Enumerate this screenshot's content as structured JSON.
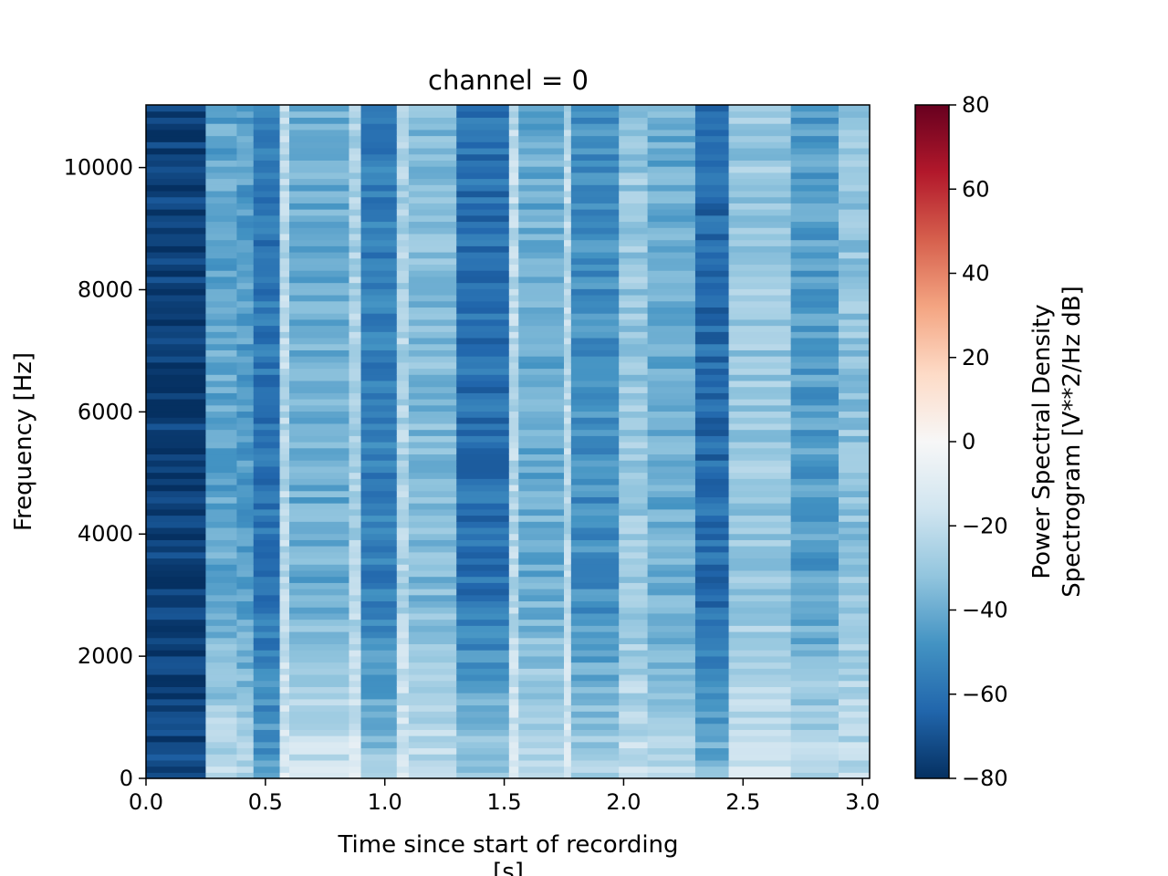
{
  "chart_data": {
    "type": "heatmap",
    "title": "channel = 0",
    "xlabel_line1": "Time since start of recording",
    "xlabel_line2": "[s]",
    "ylabel": "Frequency [Hz]",
    "xlim": [
      0.0,
      3.03
    ],
    "ylim": [
      0,
      11025
    ],
    "x_ticks": [
      0.0,
      0.5,
      1.0,
      1.5,
      2.0,
      2.5,
      3.0
    ],
    "x_tick_labels": [
      "0.0",
      "0.5",
      "1.0",
      "1.5",
      "2.0",
      "2.5",
      "3.0"
    ],
    "y_ticks": [
      0,
      2000,
      4000,
      6000,
      8000,
      10000
    ],
    "y_tick_labels": [
      "0",
      "2000",
      "4000",
      "6000",
      "8000",
      "10000"
    ],
    "colormap": "RdBu_r",
    "colorbar": {
      "label_line1": "Power Spectral Density",
      "label_line2": "Spectrogram [V**2/Hz dB]",
      "range": [
        -80,
        80
      ],
      "ticks": [
        -80,
        -60,
        -40,
        -20,
        0,
        20,
        40,
        60,
        80
      ],
      "tick_labels": [
        "−80",
        "−60",
        "−40",
        "−20",
        "0",
        "20",
        "40",
        "60",
        "80"
      ]
    },
    "time_segments_s": [
      {
        "t0": 0.0,
        "t1": 0.25,
        "db_high_freq": -76,
        "db_low_freq": -74
      },
      {
        "t0": 0.25,
        "t1": 0.38,
        "db_high_freq": -42,
        "db_low_freq": -20
      },
      {
        "t0": 0.38,
        "t1": 0.45,
        "db_high_freq": -45,
        "db_low_freq": -25
      },
      {
        "t0": 0.45,
        "t1": 0.56,
        "db_high_freq": -58,
        "db_low_freq": -45
      },
      {
        "t0": 0.56,
        "t1": 0.6,
        "db_high_freq": -22,
        "db_low_freq": -12
      },
      {
        "t0": 0.6,
        "t1": 0.85,
        "db_high_freq": -40,
        "db_low_freq": -15
      },
      {
        "t0": 0.85,
        "t1": 0.9,
        "db_high_freq": -25,
        "db_low_freq": -12
      },
      {
        "t0": 0.9,
        "t1": 1.05,
        "db_high_freq": -55,
        "db_low_freq": -28
      },
      {
        "t0": 1.05,
        "t1": 1.1,
        "db_high_freq": -25,
        "db_low_freq": -12
      },
      {
        "t0": 1.1,
        "t1": 1.3,
        "db_high_freq": -35,
        "db_low_freq": -20
      },
      {
        "t0": 1.3,
        "t1": 1.52,
        "db_high_freq": -60,
        "db_low_freq": -28
      },
      {
        "t0": 1.52,
        "t1": 1.56,
        "db_high_freq": -22,
        "db_low_freq": -12
      },
      {
        "t0": 1.56,
        "t1": 1.75,
        "db_high_freq": -40,
        "db_low_freq": -20
      },
      {
        "t0": 1.75,
        "t1": 1.78,
        "db_high_freq": -22,
        "db_low_freq": -12
      },
      {
        "t0": 1.78,
        "t1": 1.98,
        "db_high_freq": -50,
        "db_low_freq": -25
      },
      {
        "t0": 1.98,
        "t1": 2.1,
        "db_high_freq": -30,
        "db_low_freq": -18
      },
      {
        "t0": 2.1,
        "t1": 2.3,
        "db_high_freq": -40,
        "db_low_freq": -22
      },
      {
        "t0": 2.3,
        "t1": 2.44,
        "db_high_freq": -62,
        "db_low_freq": -35
      },
      {
        "t0": 2.44,
        "t1": 2.7,
        "db_high_freq": -30,
        "db_low_freq": -15
      },
      {
        "t0": 2.7,
        "t1": 2.9,
        "db_high_freq": -45,
        "db_low_freq": -20
      },
      {
        "t0": 2.9,
        "t1": 3.03,
        "db_high_freq": -32,
        "db_low_freq": -20
      }
    ]
  }
}
